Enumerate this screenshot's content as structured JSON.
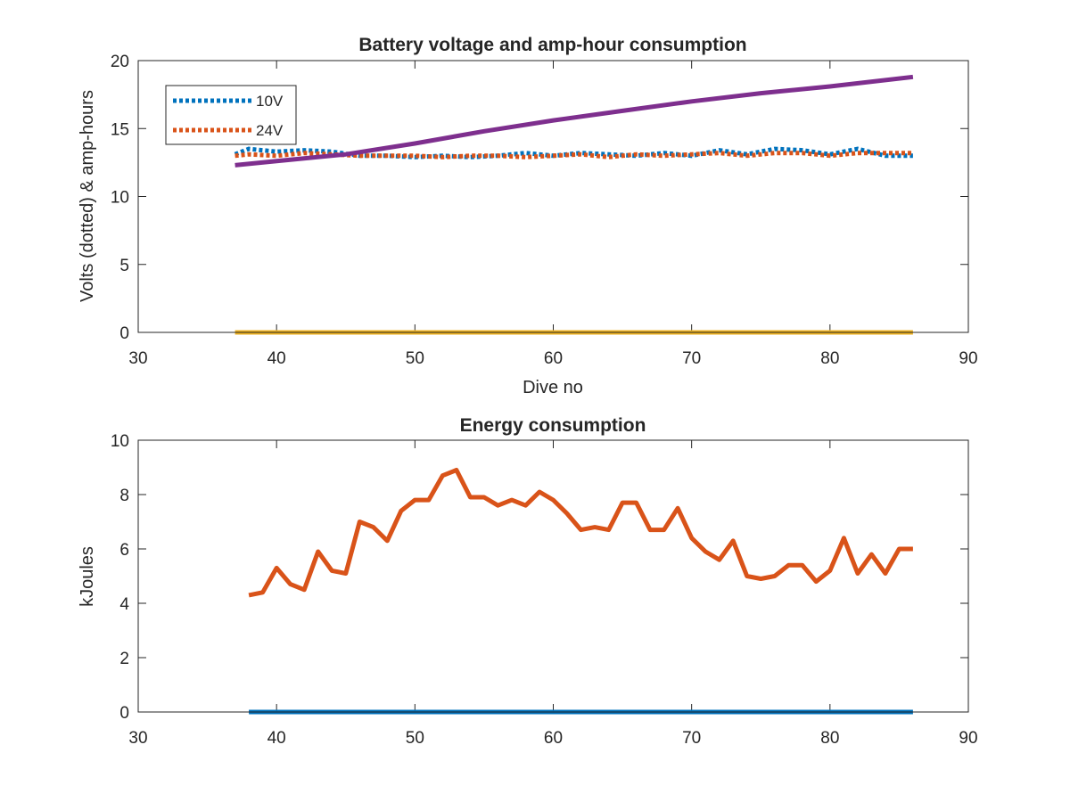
{
  "chart_data": [
    {
      "type": "line",
      "title": "Battery voltage and amp-hour consumption",
      "xlabel": "Dive no",
      "ylabel": "Volts (dotted) & amp-hours",
      "xlim": [
        30,
        90
      ],
      "ylim": [
        0,
        20
      ],
      "xticks": [
        "30",
        "40",
        "50",
        "60",
        "70",
        "80",
        "90"
      ],
      "yticks": [
        "0",
        "5",
        "10",
        "15",
        "20"
      ],
      "grid": false,
      "legend_position": "top-left",
      "series": [
        {
          "name": "10V",
          "style": "dotted",
          "color": "#0072BD",
          "x": [
            37,
            38,
            40,
            42,
            44,
            46,
            48,
            50,
            52,
            54,
            56,
            58,
            60,
            62,
            64,
            66,
            68,
            70,
            72,
            74,
            76,
            78,
            80,
            82,
            84,
            86
          ],
          "y": [
            13.1,
            13.5,
            13.3,
            13.4,
            13.3,
            13.0,
            13.0,
            12.9,
            13.0,
            12.9,
            13.0,
            13.2,
            13.0,
            13.2,
            13.1,
            13.0,
            13.2,
            13.0,
            13.4,
            13.1,
            13.5,
            13.4,
            13.1,
            13.5,
            13.0,
            13.0
          ]
        },
        {
          "name": "24V",
          "style": "dotted",
          "color": "#D95319",
          "x": [
            37,
            38,
            40,
            42,
            44,
            46,
            48,
            50,
            52,
            54,
            56,
            58,
            60,
            62,
            64,
            66,
            68,
            70,
            72,
            74,
            76,
            78,
            80,
            82,
            84,
            86
          ],
          "y": [
            13.0,
            13.1,
            13.0,
            13.2,
            13.1,
            13.0,
            13.0,
            13.0,
            12.9,
            13.0,
            13.0,
            12.9,
            13.0,
            13.1,
            12.9,
            13.1,
            13.0,
            13.1,
            13.2,
            13.0,
            13.2,
            13.2,
            13.0,
            13.2,
            13.2,
            13.2
          ]
        },
        {
          "style": "solid",
          "color": "#EDB120",
          "x": [
            37,
            86
          ],
          "y": [
            0,
            0
          ]
        },
        {
          "style": "solid",
          "color": "#7E2F8E",
          "x": [
            37,
            40,
            45,
            50,
            55,
            60,
            65,
            70,
            75,
            80,
            86
          ],
          "y": [
            12.3,
            12.6,
            13.1,
            13.9,
            14.8,
            15.6,
            16.3,
            17.0,
            17.6,
            18.1,
            18.8
          ]
        }
      ]
    },
    {
      "type": "line",
      "title": "Energy consumption",
      "xlabel": "",
      "ylabel": "kJoules",
      "xlim": [
        30,
        90
      ],
      "ylim": [
        0,
        10
      ],
      "xticks": [
        "30",
        "40",
        "50",
        "60",
        "70",
        "80",
        "90"
      ],
      "yticks": [
        "0",
        "2",
        "4",
        "6",
        "8",
        "10"
      ],
      "grid": false,
      "series": [
        {
          "style": "solid",
          "color": "#0072BD",
          "x": [
            38,
            86
          ],
          "y": [
            0,
            0
          ]
        },
        {
          "style": "solid",
          "color": "#D95319",
          "x": [
            38,
            39,
            40,
            41,
            42,
            43,
            44,
            45,
            46,
            47,
            48,
            49,
            50,
            51,
            52,
            53,
            54,
            55,
            56,
            57,
            58,
            59,
            60,
            61,
            62,
            63,
            64,
            65,
            66,
            67,
            68,
            69,
            70,
            71,
            72,
            73,
            74,
            75,
            76,
            77,
            78,
            79,
            80,
            81,
            82,
            83,
            84,
            85,
            86
          ],
          "y": [
            4.3,
            4.4,
            5.3,
            4.7,
            4.5,
            5.9,
            5.2,
            5.1,
            7.0,
            6.8,
            6.3,
            7.4,
            7.8,
            7.8,
            8.7,
            8.9,
            7.9,
            7.9,
            7.6,
            7.8,
            7.6,
            8.1,
            7.8,
            7.3,
            6.7,
            6.8,
            6.7,
            7.7,
            7.7,
            6.7,
            6.7,
            7.5,
            6.4,
            5.9,
            5.6,
            6.3,
            5.0,
            4.9,
            5.0,
            5.4,
            5.4,
            4.8,
            5.2,
            6.4,
            5.1,
            5.8,
            5.1,
            6.0,
            6.0
          ]
        }
      ]
    }
  ]
}
